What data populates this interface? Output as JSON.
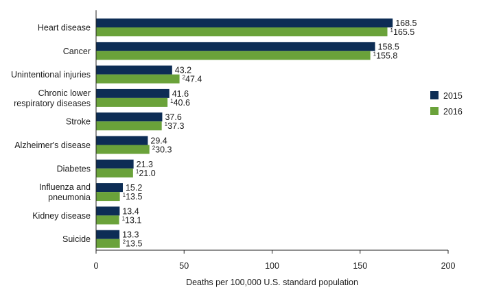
{
  "chart_data": {
    "type": "bar",
    "orientation": "horizontal",
    "title": "",
    "xlabel": "Deaths per 100,000 U.S. standard population",
    "ylabel": "",
    "xlim": [
      0,
      200
    ],
    "xticks": [
      0,
      50,
      100,
      150,
      200
    ],
    "grid": false,
    "legend_position": "right",
    "categories": [
      [
        "Heart disease"
      ],
      [
        "Cancer"
      ],
      [
        "Unintentional injuries"
      ],
      [
        "Chronic lower",
        "respiratory diseases"
      ],
      [
        "Stroke"
      ],
      [
        "Alzheimer's disease"
      ],
      [
        "Diabetes"
      ],
      [
        "Influenza and",
        "pneumonia"
      ],
      [
        "Kidney disease"
      ],
      [
        "Suicide"
      ]
    ],
    "series": [
      {
        "name": "2015",
        "color": "#0d2d55",
        "values": [
          168.5,
          158.5,
          43.2,
          41.6,
          37.6,
          29.4,
          21.3,
          15.2,
          13.4,
          13.3
        ],
        "labels": [
          "168.5",
          "158.5",
          "43.2",
          "41.6",
          "37.6",
          "29.4",
          "21.3",
          "15.2",
          "13.4",
          "13.3"
        ],
        "footnotes": [
          "",
          "",
          "",
          "",
          "",
          "",
          "",
          "",
          "",
          ""
        ]
      },
      {
        "name": "2016",
        "color": "#6aa23a",
        "values": [
          165.5,
          155.8,
          47.4,
          40.6,
          37.3,
          30.3,
          21.0,
          13.5,
          13.1,
          13.5
        ],
        "labels": [
          "165.5",
          "155.8",
          "47.4",
          "40.6",
          "37.3",
          "30.3",
          "21.0",
          "13.5",
          "13.1",
          "13.5"
        ],
        "footnotes": [
          "1",
          "1",
          "2",
          "1",
          "1",
          "2",
          "1",
          "1",
          "1",
          "2"
        ]
      }
    ]
  }
}
